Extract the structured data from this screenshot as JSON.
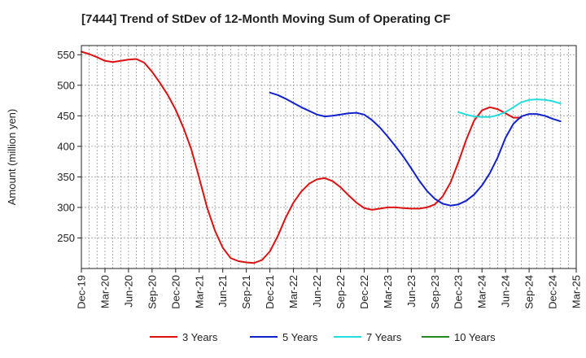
{
  "chart_data": {
    "type": "line",
    "title": "[7444]  Trend of StDev of 12-Month Moving Sum of Operating CF",
    "xlabel": "",
    "ylabel": "Amount (million yen)",
    "ylim": [
      200,
      565
    ],
    "yticks": [
      250,
      300,
      350,
      400,
      450,
      500,
      550
    ],
    "xtick_labels": [
      "Dec-19",
      "Mar-20",
      "Jun-20",
      "Sep-20",
      "Dec-20",
      "Mar-21",
      "Jun-21",
      "Sep-21",
      "Dec-21",
      "Mar-22",
      "Jun-22",
      "Sep-22",
      "Dec-22",
      "Mar-23",
      "Jun-23",
      "Sep-23",
      "Dec-23",
      "Mar-24",
      "Jun-24",
      "Sep-24",
      "Dec-24",
      "Mar-25"
    ],
    "legend_position": "bottom",
    "grid": true,
    "series": [
      {
        "name": "3 Years",
        "color": "#dd1111",
        "start_index": 0,
        "values": [
          555,
          551,
          546,
          540,
          538,
          540,
          542,
          543,
          537,
          522,
          504,
          484,
          460,
          430,
          395,
          348,
          300,
          262,
          234,
          217,
          212,
          210,
          209,
          214,
          228,
          253,
          283,
          308,
          326,
          339,
          346,
          348,
          343,
          333,
          320,
          308,
          299,
          296,
          298,
          300,
          300,
          299,
          298,
          298,
          300,
          305,
          318,
          341,
          374,
          411,
          442,
          459,
          464,
          461,
          454,
          447,
          447
        ]
      },
      {
        "name": "5 Years",
        "color": "#1122cc",
        "start_index": 24,
        "values": [
          488,
          484,
          478,
          471,
          464,
          458,
          452,
          449,
          450,
          452,
          454,
          455,
          452,
          443,
          431,
          416,
          400,
          383,
          364,
          344,
          327,
          314,
          306,
          303,
          305,
          311,
          321,
          336,
          356,
          382,
          414,
          437,
          449,
          453,
          453,
          450,
          445,
          441
        ]
      },
      {
        "name": "7 Years",
        "color": "#22dddd",
        "start_index": 48,
        "values": [
          456,
          452,
          449,
          448,
          448,
          451,
          456,
          464,
          472,
          476,
          477,
          476,
          474,
          470
        ]
      },
      {
        "name": "10 Years",
        "color": "#228822",
        "start_index": 0,
        "values": []
      }
    ]
  }
}
